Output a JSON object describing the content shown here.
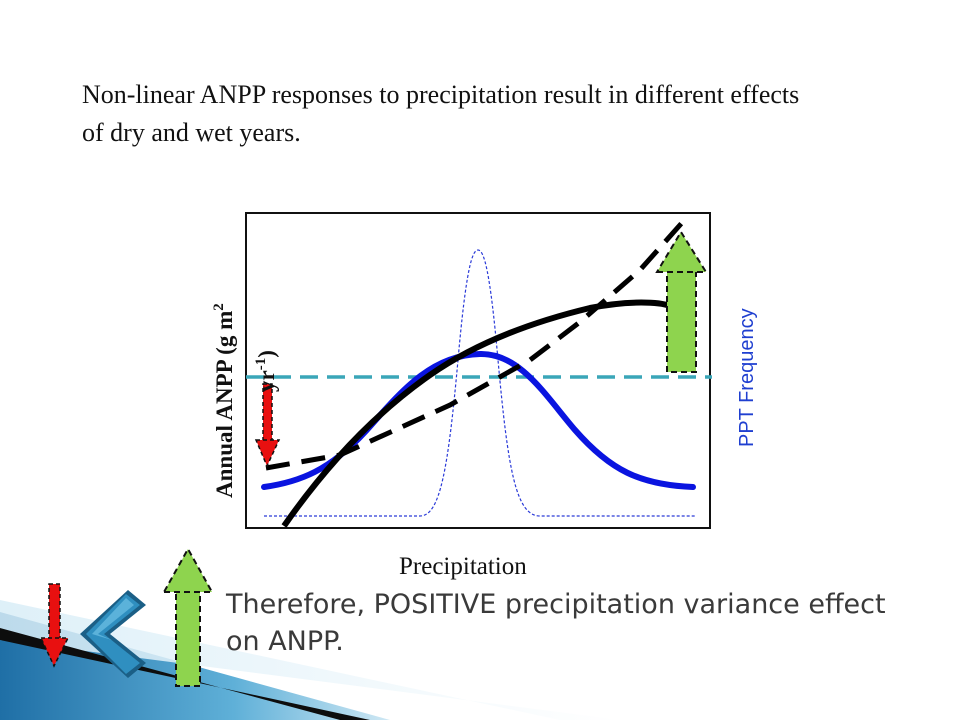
{
  "heading": {
    "line1": "Non-linear ANPP responses to precipitation result in different effects",
    "line2": "of dry and wet years."
  },
  "figure": {
    "y_axis_label": "Annual ANPP (g m",
    "y_axis_label_sup": "2",
    "y_axis_label_2": "yr",
    "y_axis_label_2_sup": "-1",
    "y_axis_label_2_end": ")",
    "x_axis_label": "Precipitation",
    "right_label": "PPT Frequency",
    "colors": {
      "frequency_curve": "#0a14e0",
      "thin_frequency_curve": "#2a3ad8",
      "anpp_curve": "#000000",
      "linear_reference": "#000000",
      "mean_line": "#3aa6b8",
      "right_label": "#1f3fd0",
      "wet_arrow": "#8ed44e",
      "dry_arrow": "#e81010"
    }
  },
  "conclusion": {
    "line1": "Therefore, POSITIVE precipitation variance effect",
    "line2": "on ANPP."
  },
  "decor": {
    "icons": [
      "down-arrow-icon",
      "left-chevron-icon",
      "up-arrow-icon"
    ],
    "colors": {
      "chevron": "#2f8fc0",
      "chevron_edge": "#1b5f86",
      "corner_stripes": "#3a8fbf"
    }
  }
}
